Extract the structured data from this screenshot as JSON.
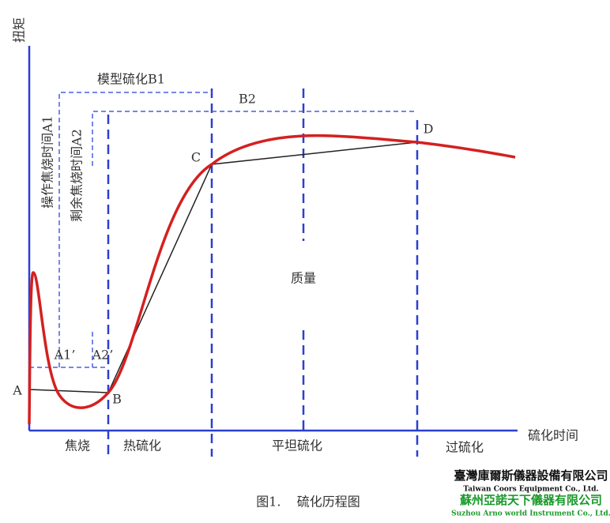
{
  "diagram": {
    "y_axis_label": "扭矩",
    "x_axis_label": "硫化时间",
    "b1_label": "模型硫化B1",
    "b2_label": "B2",
    "a1_label": "操作焦烧时间A1",
    "a2_label": "剩余焦烧时间A2",
    "a1_prime": "A1’",
    "a2_prime": "A2’",
    "points": [
      "A",
      "B",
      "C",
      "D"
    ],
    "quality_label": "质量",
    "stages": [
      "焦烧",
      "热硫化",
      "平坦硫化",
      "过硫化"
    ],
    "caption": "图1.    硫化历程图"
  },
  "watermark": {
    "company_tw": "臺灣庫爾斯儀器設備有限公司",
    "company_tw_en": "Taiwan Coors Equipment Co., Ltd.",
    "company_sz": "蘇州亞諾天下儀器有限公司",
    "company_sz_en": "Suzhou Arno world Instrument Co., Ltd."
  }
}
